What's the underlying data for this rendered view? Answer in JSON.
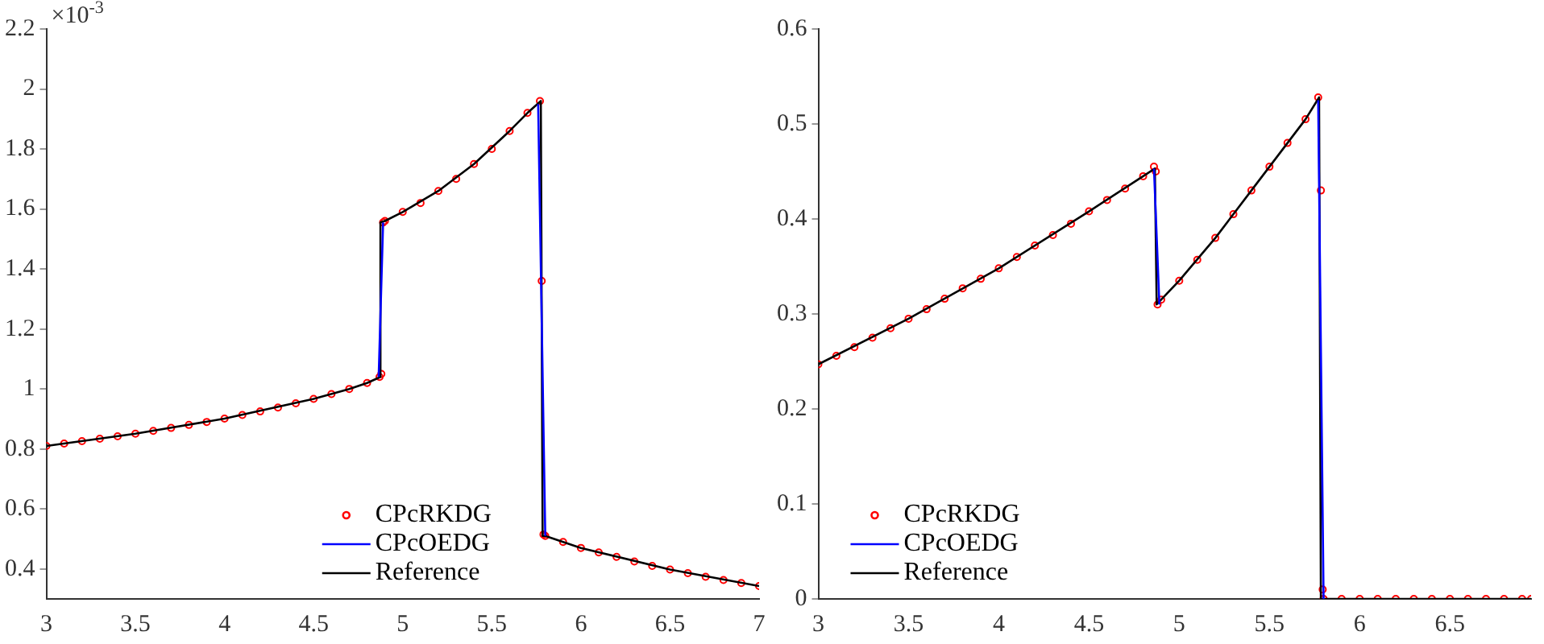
{
  "chart_data": [
    {
      "type": "line",
      "annotations": [
        "×10$^{-3}$"
      ],
      "xlim": [
        3,
        7
      ],
      "xticks": [
        3,
        3.5,
        4,
        4.5,
        5,
        5.5,
        6,
        6.5,
        7
      ],
      "ylim": [
        0.3,
        2.2
      ],
      "yticks": [
        0.4,
        0.6,
        0.8,
        1,
        1.2,
        1.4,
        1.6,
        1.8,
        2,
        2.2
      ],
      "grid": false,
      "legend": "bottom",
      "series": [
        {
          "name": "CPcRKDG",
          "type": "scatter",
          "marker": "circle",
          "color": "#ff0000",
          "x": [
            3,
            3.1,
            3.2,
            3.3,
            3.4,
            3.5,
            3.6,
            3.7,
            3.8,
            3.9,
            4,
            4.1,
            4.2,
            4.3,
            4.4,
            4.5,
            4.6,
            4.7,
            4.8,
            4.87,
            4.88,
            4.89,
            4.9,
            5,
            5.1,
            5.2,
            5.3,
            5.4,
            5.5,
            5.6,
            5.7,
            5.77,
            5.78,
            5.79,
            5.8,
            5.9,
            6,
            6.1,
            6.2,
            6.3,
            6.4,
            6.5,
            6.6,
            6.7,
            6.8,
            6.9,
            7
          ],
          "values": [
            0.81,
            0.818,
            0.826,
            0.834,
            0.842,
            0.851,
            0.86,
            0.87,
            0.88,
            0.89,
            0.901,
            0.913,
            0.925,
            0.938,
            0.952,
            0.967,
            0.983,
            1,
            1.02,
            1.04,
            1.05,
            1.555,
            1.56,
            1.59,
            1.62,
            1.66,
            1.7,
            1.75,
            1.8,
            1.86,
            1.92,
            1.96,
            1.36,
            0.515,
            0.51,
            0.49,
            0.47,
            0.455,
            0.44,
            0.425,
            0.41,
            0.398,
            0.386,
            0.374,
            0.363,
            0.353,
            0.343
          ]
        },
        {
          "name": "CPcOEDG",
          "type": "line",
          "color": "#0000ff",
          "x": [
            4.865,
            4.89,
            5.3,
            5.76,
            5.8
          ],
          "values": [
            1.04,
            1.555,
            null,
            1.95,
            0.51
          ]
        },
        {
          "name": "Reference",
          "type": "line",
          "color": "#000000",
          "x": [
            3,
            3.5,
            4,
            4.5,
            4.7,
            4.8,
            4.875,
            4.875,
            4.9,
            5,
            5.2,
            5.4,
            5.6,
            5.7,
            5.775,
            5.785,
            5.8,
            6,
            6.5,
            7
          ],
          "values": [
            0.81,
            0.851,
            0.901,
            0.967,
            1,
            1.02,
            1.04,
            1.555,
            1.56,
            1.59,
            1.66,
            1.75,
            1.86,
            1.92,
            1.96,
            0.51,
            0.51,
            0.47,
            0.398,
            0.343
          ]
        }
      ]
    },
    {
      "type": "line",
      "xlim": [
        3,
        6.95
      ],
      "xticks": [
        3,
        3.5,
        4,
        4.5,
        5,
        5.5,
        6,
        6.5
      ],
      "ylim": [
        0,
        0.6
      ],
      "yticks": [
        0,
        0.1,
        0.2,
        0.3,
        0.4,
        0.5,
        0.6
      ],
      "grid": false,
      "legend": "bottom left",
      "series": [
        {
          "name": "CPcRKDG",
          "type": "scatter",
          "marker": "circle",
          "color": "#ff0000",
          "x": [
            3,
            3.1,
            3.2,
            3.3,
            3.4,
            3.5,
            3.6,
            3.7,
            3.8,
            3.9,
            4,
            4.1,
            4.2,
            4.3,
            4.4,
            4.5,
            4.6,
            4.7,
            4.8,
            4.86,
            4.87,
            4.88,
            4.9,
            5,
            5.1,
            5.2,
            5.3,
            5.4,
            5.5,
            5.6,
            5.7,
            5.77,
            5.785,
            5.795,
            5.8,
            5.9,
            6,
            6.1,
            6.2,
            6.3,
            6.4,
            6.5,
            6.6,
            6.7,
            6.8,
            6.9,
            6.95
          ],
          "values": [
            0.247,
            0.256,
            0.265,
            0.275,
            0.285,
            0.295,
            0.305,
            0.316,
            0.327,
            0.337,
            0.348,
            0.36,
            0.372,
            0.383,
            0.395,
            0.408,
            0.42,
            0.432,
            0.445,
            0.455,
            0.45,
            0.31,
            0.315,
            0.335,
            0.357,
            0.38,
            0.405,
            0.43,
            0.455,
            0.48,
            0.505,
            0.528,
            0.43,
            0.01,
            0,
            0,
            0,
            0,
            0,
            0,
            0,
            0,
            0,
            0,
            0,
            0,
            0
          ]
        },
        {
          "name": "CPcOEDG",
          "type": "line",
          "color": "#0000ff",
          "x": [
            4.86,
            4.89,
            5.3,
            5.77,
            5.8
          ],
          "values": [
            0.453,
            0.31,
            null,
            0.525,
            0
          ]
        },
        {
          "name": "Reference",
          "type": "line",
          "color": "#000000",
          "x": [
            3,
            3.5,
            4,
            4.5,
            4.8,
            4.865,
            4.875,
            5,
            5.2,
            5.4,
            5.6,
            5.7,
            5.775,
            5.785,
            6,
            6.5,
            6.95
          ],
          "values": [
            0.247,
            0.295,
            0.348,
            0.408,
            0.445,
            0.453,
            0.31,
            0.335,
            0.38,
            0.43,
            0.48,
            0.505,
            0.528,
            0,
            0,
            0,
            0
          ]
        }
      ]
    }
  ]
}
